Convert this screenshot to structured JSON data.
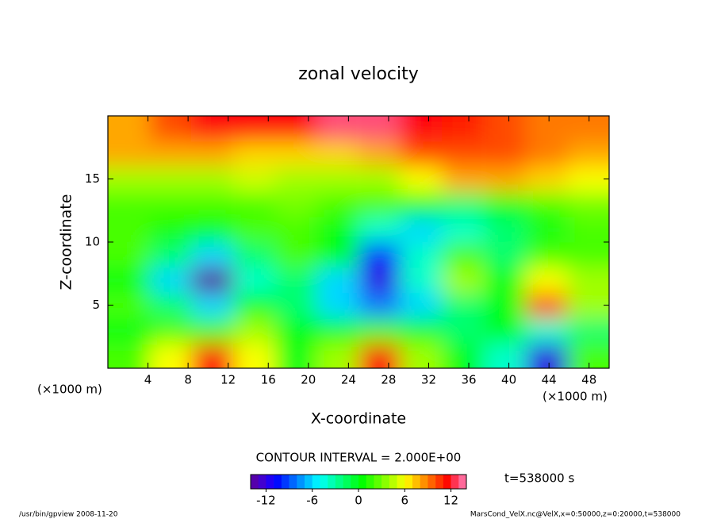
{
  "chart_data": {
    "type": "heatmap",
    "title": "zonal velocity",
    "x_label": "X-coordinate",
    "y_label": "Z-coordinate",
    "x_unit": "(×1000 m)",
    "x_unit_right": "(×1000 m)",
    "contour_interval": "CONTOUR INTERVAL = 2.000E+00",
    "time_label": "t=538000 s",
    "footer_left": "/usr/bin/gpview  2008-11-20",
    "footer_right": "MarsCond_VelX.nc@VelX,x=0:50000,z=0:20000,t=538000",
    "x": [
      2.08,
      6.25,
      10.4,
      14.6,
      18.75,
      22.9,
      27.1,
      31.25,
      35.4,
      39.6,
      43.75,
      47.9
    ],
    "y": [
      1,
      3,
      5,
      7,
      9,
      11,
      13,
      15,
      17,
      19
    ],
    "z": [
      [
        2,
        6,
        12,
        6,
        0,
        4,
        12,
        4,
        0,
        -4,
        -12,
        2
      ],
      [
        0,
        2,
        2,
        4,
        0,
        0,
        2,
        0,
        -2,
        0,
        -4,
        -2
      ],
      [
        2,
        -2,
        -6,
        0,
        -2,
        -6,
        -8,
        -6,
        -2,
        0,
        10,
        4
      ],
      [
        0,
        -6,
        -14,
        -4,
        -2,
        -6,
        -12,
        -4,
        4,
        0,
        6,
        4
      ],
      [
        2,
        -2,
        -6,
        -2,
        2,
        0,
        -10,
        -4,
        2,
        -2,
        2,
        2
      ],
      [
        2,
        1,
        0,
        2,
        2,
        0,
        -4,
        -6,
        -4,
        -2,
        0,
        2
      ],
      [
        2,
        2,
        2,
        2,
        3,
        2,
        2,
        0,
        -2,
        0,
        2,
        3
      ],
      [
        4,
        4,
        4,
        5,
        4,
        4,
        4,
        6,
        8,
        8,
        7,
        6
      ],
      [
        8,
        8,
        8,
        7,
        7,
        7,
        8,
        10,
        10,
        10,
        9,
        8
      ],
      [
        8,
        10,
        12,
        12,
        12,
        13,
        13,
        12,
        11,
        10,
        9,
        9
      ]
    ],
    "xlim": [
      0,
      50
    ],
    "ylim": [
      0,
      20
    ],
    "xticks": [
      4,
      8,
      12,
      16,
      20,
      24,
      28,
      32,
      36,
      40,
      44,
      48
    ],
    "yticks": [
      5,
      10,
      15
    ],
    "clim": [
      -14,
      14
    ],
    "cticks": [
      -12,
      -6,
      0,
      6,
      12
    ],
    "colormap": "rainbow"
  }
}
